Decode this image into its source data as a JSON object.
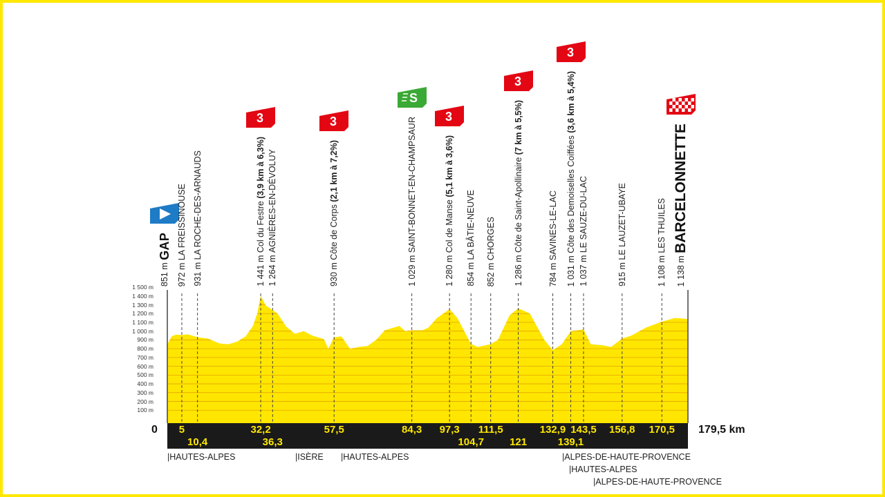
{
  "chart_data": {
    "type": "area",
    "xlabel": "",
    "ylabel": "",
    "x_unit": "km",
    "y_unit": "m",
    "xlim": [
      0,
      179.5
    ],
    "ylim": [
      0,
      1500
    ],
    "y_ticks": [
      "100 m",
      "200 m",
      "300 m",
      "400 m",
      "500 m",
      "600 m",
      "700 m",
      "800 m",
      "900 m",
      "1 000 m",
      "1 100 m",
      "1 200 m",
      "1 300 m",
      "1 400 m",
      "1 500 m"
    ],
    "start_label": "0",
    "total_label": "179,5 km",
    "profile": [
      [
        0,
        851
      ],
      [
        1.5,
        940
      ],
      [
        3,
        960
      ],
      [
        5,
        955
      ],
      [
        7,
        965
      ],
      [
        10.4,
        931
      ],
      [
        14,
        915
      ],
      [
        18,
        860
      ],
      [
        21,
        850
      ],
      [
        24,
        880
      ],
      [
        27,
        940
      ],
      [
        29.5,
        1060
      ],
      [
        31,
        1200
      ],
      [
        32.2,
        1400
      ],
      [
        34,
        1290
      ],
      [
        36.3,
        1240
      ],
      [
        38,
        1200
      ],
      [
        41,
        1050
      ],
      [
        44,
        970
      ],
      [
        47,
        1000
      ],
      [
        50,
        950
      ],
      [
        54,
        910
      ],
      [
        55.5,
        800
      ],
      [
        57.5,
        930
      ],
      [
        60,
        940
      ],
      [
        63,
        800
      ],
      [
        66,
        820
      ],
      [
        69,
        830
      ],
      [
        72,
        900
      ],
      [
        75,
        1010
      ],
      [
        78,
        1040
      ],
      [
        80,
        1060
      ],
      [
        82,
        1000
      ],
      [
        84.3,
        1010
      ],
      [
        88,
        1010
      ],
      [
        90,
        1040
      ],
      [
        93,
        1150
      ],
      [
        97.3,
        1250
      ],
      [
        100,
        1150
      ],
      [
        104.7,
        854
      ],
      [
        107,
        820
      ],
      [
        111.5,
        852
      ],
      [
        114,
        900
      ],
      [
        118,
        1180
      ],
      [
        121,
        1260
      ],
      [
        123,
        1230
      ],
      [
        125,
        1200
      ],
      [
        130,
        900
      ],
      [
        132.9,
        784
      ],
      [
        136,
        850
      ],
      [
        139.1,
        1000
      ],
      [
        143.5,
        1020
      ],
      [
        146,
        850
      ],
      [
        150,
        840
      ],
      [
        153,
        820
      ],
      [
        156.8,
        915
      ],
      [
        160,
        950
      ],
      [
        165,
        1040
      ],
      [
        170.5,
        1108
      ],
      [
        175,
        1150
      ],
      [
        179.5,
        1138
      ]
    ],
    "waypoints": [
      {
        "km": "0",
        "kmv": 0,
        "elev": "851 m",
        "name": "GAP",
        "detail": "",
        "style": "start",
        "icon": "start-flag"
      },
      {
        "km": "5",
        "kmv": 5,
        "elev": "972 m",
        "name": "LA FREISSINOUSE",
        "detail": "",
        "row": 1
      },
      {
        "km": "10,4",
        "kmv": 10.4,
        "elev": "931 m",
        "name": "LA ROCHE-DES-ARNAUDS",
        "detail": "",
        "row": 2
      },
      {
        "km": "32,2",
        "kmv": 32.2,
        "elev": "1 441 m",
        "name": "Col du Festre",
        "detail": "(3,9 km à 6,3%)",
        "row": 1,
        "icon": "climb-cat-3"
      },
      {
        "km": "36,3",
        "kmv": 36.3,
        "elev": "1 264 m",
        "name": "AGNIÈRES-EN-DÉVOLUY",
        "detail": "",
        "row": 2
      },
      {
        "km": "57,5",
        "kmv": 57.5,
        "elev": "930 m",
        "name": "Côte de Corps",
        "detail": "(2,1 km à 7,2%)",
        "row": 1,
        "icon": "climb-cat-3"
      },
      {
        "km": "84,3",
        "kmv": 84.3,
        "elev": "1 029 m",
        "name": "SAINT-BONNET-EN-CHAMPSAUR",
        "detail": "",
        "row": 1,
        "icon": "sprint"
      },
      {
        "km": "97,3",
        "kmv": 97.3,
        "elev": "1 280 m",
        "name": "Col de Manse",
        "detail": "(5,1 km à 3,6%)",
        "row": 1,
        "icon": "climb-cat-3"
      },
      {
        "km": "104,7",
        "kmv": 104.7,
        "elev": "854 m",
        "name": "LA BÂTIE-NEUVE",
        "detail": "",
        "row": 2
      },
      {
        "km": "111,5",
        "kmv": 111.5,
        "elev": "852 m",
        "name": "CHORGES",
        "detail": "",
        "row": 1
      },
      {
        "km": "121",
        "kmv": 121,
        "elev": "1 286 m",
        "name": "Côte de Saint-Apollinaire",
        "detail": "(7 km à 5,5%)",
        "row": 2,
        "icon": "climb-cat-3"
      },
      {
        "km": "132,9",
        "kmv": 132.9,
        "elev": "784 m",
        "name": "SAVINES-LE-LAC",
        "detail": "",
        "row": 1
      },
      {
        "km": "139,1",
        "kmv": 139.1,
        "elev": "1 031 m",
        "name": "Côte des Demoiselles Coiffées",
        "detail": "(3,6 km à 5,4%)",
        "row": 2,
        "icon": "climb-cat-3"
      },
      {
        "km": "143,5",
        "kmv": 143.5,
        "elev": "1 037 m",
        "name": "LE SAUZE-DU-LAC",
        "detail": "",
        "row": 1
      },
      {
        "km": "156,8",
        "kmv": 156.8,
        "elev": "915 m",
        "name": "LE LAUZET-UBAYE",
        "detail": "",
        "row": 1
      },
      {
        "km": "170,5",
        "kmv": 170.5,
        "elev": "1 108 m",
        "name": "LES THUILES",
        "detail": "",
        "row": 1
      },
      {
        "km": "",
        "kmv": 179.5,
        "elev": "1 138 m",
        "name": "BARCELONNETTE",
        "detail": "",
        "style": "finish",
        "icon": "finish-flag"
      }
    ],
    "climb_category": "3",
    "regions": [
      "|HAUTES-ALPES",
      "|ISÈRE",
      "|HAUTES-ALPES",
      "|ALPES-DE-HAUTE-PROVENCE",
      "|HAUTES-ALPES",
      "|ALPES-DE-HAUTE-PROVENCE"
    ],
    "colors": {
      "profile": "#FFE600",
      "grid": "#E2A400",
      "band": "#1a1a1a",
      "km_text": "#FFE800",
      "climb": "#E30613",
      "sprint": "#3BA935",
      "start": "#1E7BC6",
      "frame": "#FFE800"
    }
  }
}
